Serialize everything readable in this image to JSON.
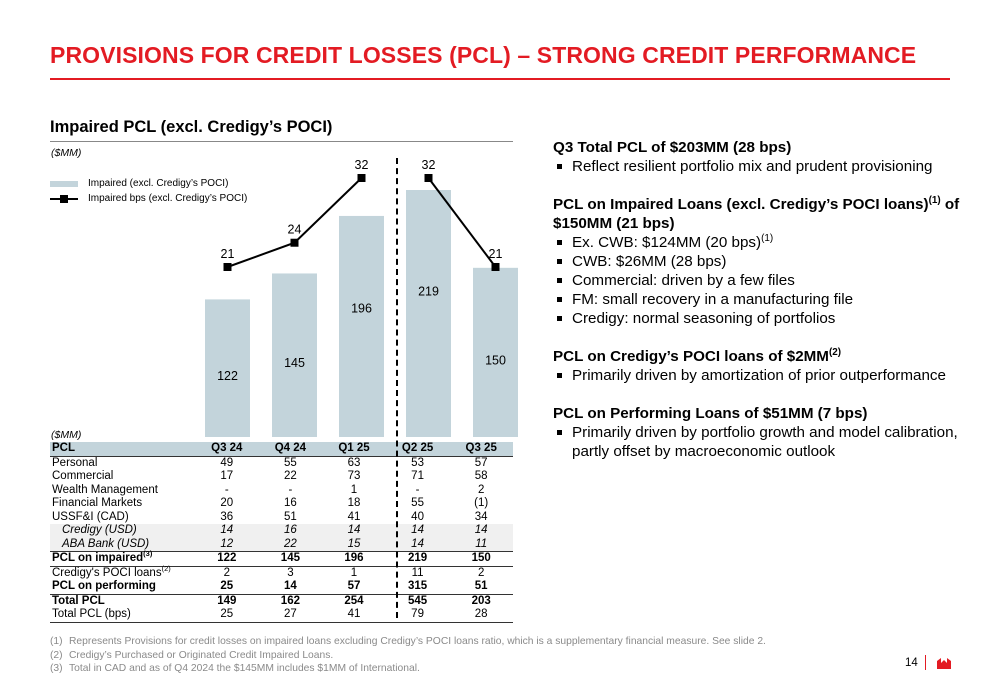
{
  "slide": {
    "title": "PROVISIONS FOR CREDIT LOSSES (PCL) – STRONG CREDIT PERFORMANCE",
    "page_number": "14",
    "colors": {
      "accent": "#e31b23",
      "bar": "#c3d4db",
      "line": "#000000",
      "footnote": "#8a8a8a"
    }
  },
  "chart_section": {
    "title": "Impaired PCL (excl. Credigy’s POCI)",
    "unit": "($MM)",
    "table_unit": "($MM)"
  },
  "chart_data": {
    "type": "bar",
    "categories": [
      "Q3 24",
      "Q4 24",
      "Q1 25",
      "Q2 25",
      "Q3 25"
    ],
    "series": [
      {
        "name": "Impaired (excl. Credigy’s POCI)",
        "kind": "bar",
        "values": [
          122,
          145,
          196,
          219,
          150
        ]
      },
      {
        "name": "Impaired bps (excl. Credigy’s POCI)",
        "kind": "line",
        "values": [
          21,
          24,
          32,
          32,
          21
        ]
      }
    ],
    "legend_position": "top-left",
    "line_break_after_category": "Q1 25"
  },
  "table": {
    "header": [
      "PCL",
      "Q3 24",
      "Q4 24",
      "Q1 25",
      "Q2 25",
      "Q3 25"
    ],
    "rows": [
      {
        "label": "Personal",
        "values": [
          "49",
          "55",
          "63",
          "53",
          "57"
        ]
      },
      {
        "label": "Commercial",
        "values": [
          "17",
          "22",
          "73",
          "71",
          "58"
        ]
      },
      {
        "label": "Wealth Management",
        "values": [
          "-",
          "-",
          "1",
          "-",
          "2"
        ]
      },
      {
        "label": "Financial Markets",
        "values": [
          "20",
          "16",
          "18",
          "55",
          "(1)"
        ]
      },
      {
        "label": "USSF&I (CAD)",
        "values": [
          "36",
          "51",
          "41",
          "40",
          "34"
        ]
      },
      {
        "label": "Credigy (USD)",
        "values": [
          "14",
          "16",
          "14",
          "14",
          "14"
        ]
      },
      {
        "label": "ABA Bank (USD)",
        "values": [
          "12",
          "22",
          "15",
          "14",
          "11"
        ]
      },
      {
        "label": "PCL on impaired",
        "sup": "(3)",
        "values": [
          "122",
          "145",
          "196",
          "219",
          "150"
        ]
      },
      {
        "label": "Credigy's POCI loans",
        "sup": "(2)",
        "values": [
          "2",
          "3",
          "1",
          "11",
          "2"
        ]
      },
      {
        "label": "PCL on performing",
        "values": [
          "25",
          "14",
          "57",
          "315",
          "51"
        ]
      },
      {
        "label": "Total PCL",
        "values": [
          "149",
          "162",
          "254",
          "545",
          "203"
        ]
      },
      {
        "label": "Total PCL (bps)",
        "values": [
          "25",
          "27",
          "41",
          "79",
          "28"
        ]
      }
    ]
  },
  "commentary": [
    {
      "heading": "Q3 Total PCL of $203MM (28 bps)",
      "bullets": [
        "Reflect resilient portfolio mix and prudent provisioning"
      ]
    },
    {
      "heading_pre": "PCL on Impaired Loans (excl. Credigy’s POCI loans)",
      "heading_sup": "(1)",
      "heading_post": " of $150MM (21 bps)",
      "bullets": [
        "Ex. CWB: $124MM (20 bps)",
        "CWB: $26MM (28 bps)",
        "Commercial: driven by a few files",
        "FM: small recovery in a manufacturing file",
        "Credigy: normal seasoning of portfolios"
      ],
      "first_bullet_sup": "(1)"
    },
    {
      "heading_pre": "PCL on Credigy’s POCI loans of $2MM",
      "heading_sup": "(2)",
      "bullets": [
        "Primarily driven by amortization of prior outperformance"
      ]
    },
    {
      "heading": "PCL on Performing Loans of $51MM (7 bps)",
      "bullets": [
        "Primarily driven by portfolio growth and model calibration, partly offset by macroeconomic outlook"
      ]
    }
  ],
  "footnotes": [
    {
      "n": "(1)",
      "text": "Represents Provisions for credit losses on impaired loans excluding Credigy’s POCI loans ratio, which is a supplementary financial measure. See slide 2."
    },
    {
      "n": "(2)",
      "text": "Credigy’s Purchased or Originated Credit Impaired Loans."
    },
    {
      "n": "(3)",
      "text": "Total in CAD and as of Q4 2024 the $145MM includes $1MM of International."
    }
  ]
}
